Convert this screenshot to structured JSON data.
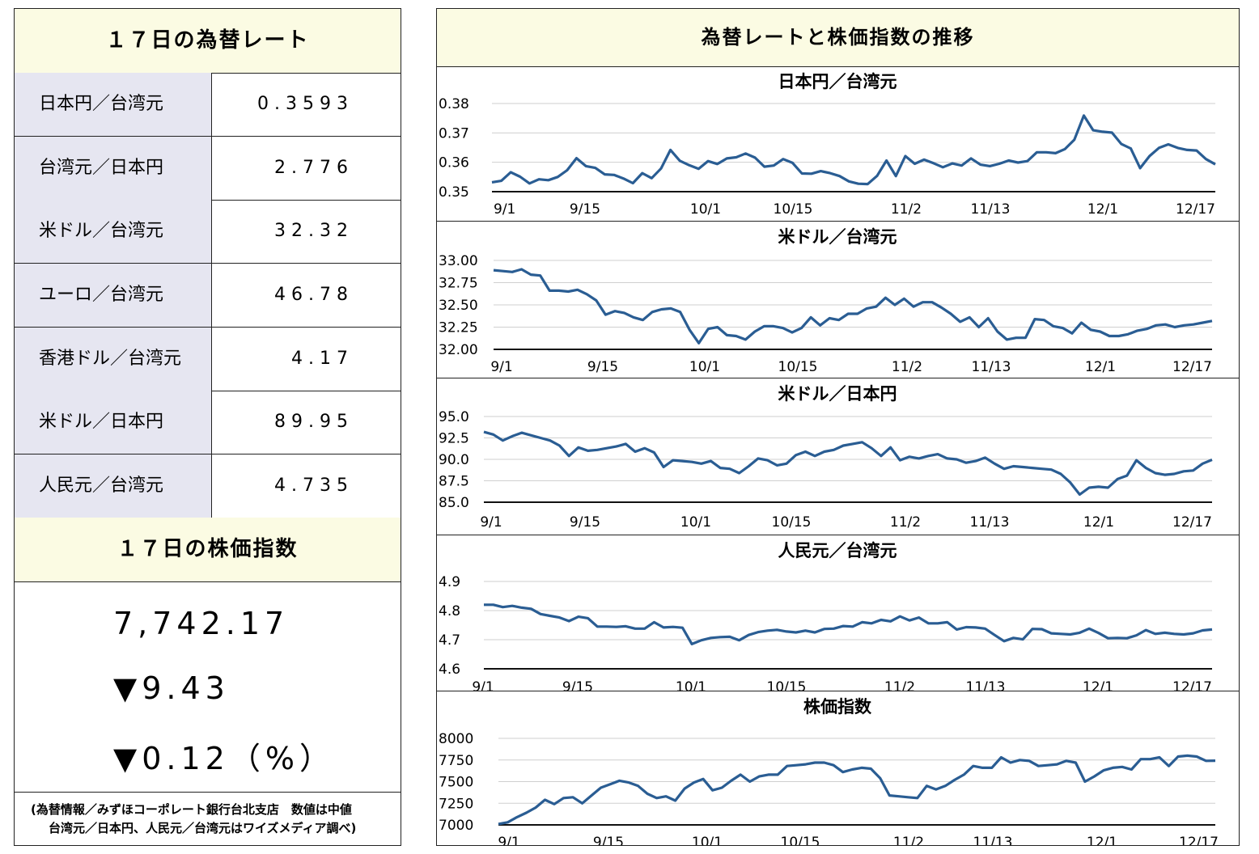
{
  "left": {
    "rates_title": "１７日の為替レート",
    "rates": [
      {
        "label": "日本円／台湾元",
        "value": "0.3593"
      },
      {
        "label": "台湾元／日本円",
        "value": "2.776"
      },
      {
        "label": "米ドル／台湾元",
        "value": "32.32"
      },
      {
        "label": "ユーロ／台湾元",
        "value": "46.78"
      },
      {
        "label": "香港ドル／台湾元",
        "value": "4.17"
      },
      {
        "label": "米ドル／日本円",
        "value": "89.95"
      },
      {
        "label": "人民元／台湾元",
        "value": "4.735"
      }
    ],
    "stock_title": "１７日の株価指数",
    "stock_value": "7,742.17",
    "stock_change": "▼9.43",
    "stock_change_pct": "▼0.12（%）",
    "note_line1": "(為替情報／みずほコーポレート銀行台北支店　数値は中値",
    "note_line2": "台湾元／日本円、人民元／台湾元はワイズメディア調べ)"
  },
  "right_title": "為替レートと株価指数の推移",
  "chart_data": [
    {
      "type": "line",
      "title": "日本円／台湾元",
      "x_ticks": [
        "9/1",
        "9/15",
        "10/1",
        "10/15",
        "11/2",
        "11/13",
        "12/1",
        "12/17"
      ],
      "y_ticks": [
        "0.38",
        "0.37",
        "0.36",
        "0.35"
      ],
      "ylim": [
        0.35,
        0.38
      ],
      "color": "#2a5d93",
      "values": [
        0.3532,
        0.3537,
        0.3566,
        0.3551,
        0.3528,
        0.3542,
        0.3539,
        0.355,
        0.3573,
        0.3614,
        0.3587,
        0.3581,
        0.3559,
        0.3557,
        0.3545,
        0.3529,
        0.3563,
        0.3546,
        0.3579,
        0.3642,
        0.3605,
        0.359,
        0.3578,
        0.3604,
        0.3594,
        0.3613,
        0.3617,
        0.363,
        0.3616,
        0.3585,
        0.3589,
        0.3611,
        0.3598,
        0.3562,
        0.3561,
        0.357,
        0.3563,
        0.3553,
        0.3535,
        0.3527,
        0.3526,
        0.3554,
        0.3606,
        0.3553,
        0.3621,
        0.3595,
        0.3609,
        0.3597,
        0.3583,
        0.3596,
        0.3589,
        0.3613,
        0.3592,
        0.3587,
        0.3595,
        0.3606,
        0.3599,
        0.3604,
        0.3634,
        0.3634,
        0.3631,
        0.3645,
        0.3677,
        0.3759,
        0.3709,
        0.3704,
        0.3701,
        0.3662,
        0.3647,
        0.358,
        0.3621,
        0.3649,
        0.3661,
        0.3649,
        0.3642,
        0.364,
        0.3611,
        0.3593
      ]
    },
    {
      "type": "line",
      "title": "米ドル／台湾元",
      "x_ticks": [
        "9/1",
        "9/15",
        "10/1",
        "10/15",
        "11/2",
        "11/13",
        "12/1",
        "12/17"
      ],
      "y_ticks": [
        "33.00",
        "32.75",
        "32.50",
        "32.25",
        "32.00"
      ],
      "ylim": [
        32.0,
        33.0
      ],
      "color": "#2a5d93",
      "values": [
        32.89,
        32.88,
        32.87,
        32.9,
        32.84,
        32.83,
        32.66,
        32.66,
        32.65,
        32.67,
        32.62,
        32.55,
        32.39,
        32.43,
        32.41,
        32.36,
        32.33,
        32.42,
        32.45,
        32.46,
        32.42,
        32.22,
        32.07,
        32.23,
        32.25,
        32.16,
        32.15,
        32.11,
        32.2,
        32.26,
        32.26,
        32.24,
        32.19,
        32.24,
        32.36,
        32.27,
        32.35,
        32.33,
        32.4,
        32.4,
        32.46,
        32.48,
        32.58,
        32.5,
        32.57,
        32.48,
        32.53,
        32.53,
        32.47,
        32.4,
        32.31,
        32.36,
        32.25,
        32.35,
        32.2,
        32.11,
        32.13,
        32.13,
        32.34,
        32.33,
        32.26,
        32.24,
        32.18,
        32.3,
        32.22,
        32.2,
        32.15,
        32.15,
        32.17,
        32.21,
        32.23,
        32.27,
        32.28,
        32.25,
        32.27,
        32.28,
        32.3,
        32.32
      ]
    },
    {
      "type": "line",
      "title": "米ドル／日本円",
      "x_ticks": [
        "9/1",
        "9/15",
        "10/1",
        "10/15",
        "11/2",
        "11/13",
        "12/1",
        "12/17"
      ],
      "y_ticks": [
        "95.0",
        "92.5",
        "90.0",
        "87.5",
        "85.0"
      ],
      "ylim": [
        85.0,
        95.0
      ],
      "color": "#2a5d93",
      "values": [
        93.2,
        92.9,
        92.2,
        92.7,
        93.1,
        92.8,
        92.5,
        92.2,
        91.6,
        90.4,
        91.4,
        91.0,
        91.1,
        91.3,
        91.5,
        91.8,
        90.9,
        91.3,
        90.8,
        89.1,
        89.9,
        89.8,
        89.7,
        89.5,
        89.8,
        89.0,
        88.9,
        88.4,
        89.2,
        90.1,
        89.9,
        89.3,
        89.5,
        90.5,
        90.9,
        90.4,
        90.9,
        91.1,
        91.6,
        91.8,
        92.0,
        91.3,
        90.4,
        91.4,
        89.9,
        90.3,
        90.1,
        90.4,
        90.6,
        90.1,
        90.0,
        89.6,
        89.8,
        90.2,
        89.5,
        88.9,
        89.2,
        89.1,
        89.0,
        88.9,
        88.8,
        88.3,
        87.3,
        85.9,
        86.7,
        86.8,
        86.7,
        87.7,
        88.1,
        89.9,
        89.0,
        88.4,
        88.2,
        88.3,
        88.6,
        88.7,
        89.5,
        89.95
      ]
    },
    {
      "type": "line",
      "title": "人民元／台湾元",
      "x_ticks": [
        "9/1",
        "9/15",
        "10/1",
        "10/15",
        "11/2",
        "11/13",
        "12/1",
        "12/17"
      ],
      "y_ticks": [
        "4.9",
        "4.8",
        "4.7",
        "4.6"
      ],
      "ylim": [
        4.6,
        4.9
      ],
      "color": "#2a5d93",
      "values": [
        4.82,
        4.82,
        4.812,
        4.816,
        4.81,
        4.806,
        4.788,
        4.782,
        4.776,
        4.764,
        4.779,
        4.774,
        4.745,
        4.745,
        4.744,
        4.746,
        4.738,
        4.738,
        4.76,
        4.742,
        4.744,
        4.741,
        4.685,
        4.698,
        4.706,
        4.709,
        4.71,
        4.698,
        4.716,
        4.726,
        4.731,
        4.734,
        4.728,
        4.725,
        4.731,
        4.725,
        4.737,
        4.738,
        4.747,
        4.745,
        4.76,
        4.756,
        4.768,
        4.763,
        4.78,
        4.766,
        4.776,
        4.756,
        4.756,
        4.76,
        4.735,
        4.743,
        4.742,
        4.738,
        4.716,
        4.695,
        4.706,
        4.701,
        4.737,
        4.736,
        4.722,
        4.72,
        4.718,
        4.724,
        4.738,
        4.723,
        4.705,
        4.706,
        4.705,
        4.715,
        4.733,
        4.72,
        4.724,
        4.72,
        4.718,
        4.722,
        4.732,
        4.735
      ]
    },
    {
      "type": "line",
      "title": "株価指数",
      "x_ticks": [
        "9/1",
        "9/15",
        "10/1",
        "10/15",
        "11/2",
        "11/13",
        "12/1",
        "12/17"
      ],
      "y_ticks": [
        "8000",
        "7750",
        "7500",
        "7250",
        "7000"
      ],
      "ylim": [
        7000,
        8000
      ],
      "color": "#2a5d93",
      "values": [
        7010,
        7030,
        7090,
        7140,
        7200,
        7290,
        7240,
        7310,
        7320,
        7250,
        7340,
        7430,
        7470,
        7510,
        7490,
        7450,
        7360,
        7310,
        7330,
        7280,
        7420,
        7490,
        7530,
        7400,
        7430,
        7510,
        7580,
        7500,
        7560,
        7580,
        7580,
        7680,
        7690,
        7700,
        7720,
        7720,
        7690,
        7610,
        7640,
        7660,
        7650,
        7540,
        7340,
        7330,
        7320,
        7310,
        7450,
        7410,
        7450,
        7520,
        7580,
        7680,
        7660,
        7660,
        7780,
        7720,
        7750,
        7740,
        7680,
        7690,
        7700,
        7740,
        7720,
        7500,
        7560,
        7630,
        7660,
        7670,
        7640,
        7760,
        7760,
        7780,
        7680,
        7790,
        7800,
        7790,
        7740,
        7742
      ]
    }
  ]
}
